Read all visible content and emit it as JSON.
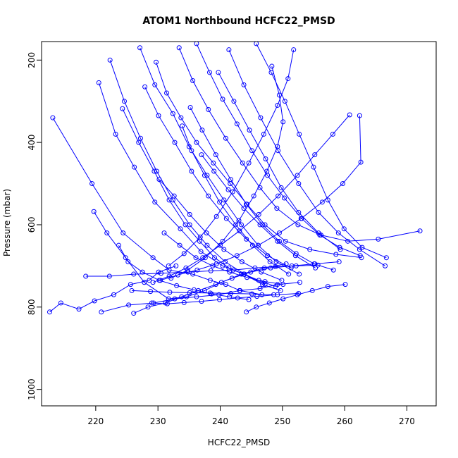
{
  "chart_data": {
    "type": "line",
    "title": "ATOM1 Northbound HCFC22_PMSD",
    "xlabel": "HCFC22_PMSD",
    "ylabel": "Pressure (mbar)",
    "xlim": [
      211.3,
      274.7
    ],
    "ylim": [
      1040,
      155
    ],
    "y_reversed": true,
    "grid": false,
    "legend": "none",
    "series_color": "#0000ff",
    "marker": "open-circle",
    "x_ticks": [
      220,
      230,
      240,
      250,
      260,
      270
    ],
    "x_tick_labels": [
      "220",
      "230",
      "240",
      "250",
      "260",
      "270"
    ],
    "y_ticks": [
      200,
      400,
      600,
      800,
      1000
    ],
    "y_tick_labels": [
      "200",
      "400",
      "600",
      "800",
      "1000"
    ],
    "profiles": [
      {
        "x": [
          212.6,
          214.4,
          217.3,
          219.8,
          222.9,
          225.6,
          228.6,
          230.1,
          232.9
        ],
        "y": [
          812,
          790,
          805,
          785,
          770,
          745,
          735,
          715,
          700
        ]
      },
      {
        "x": [
          213.1,
          219.4,
          224.4,
          229.2,
          231.8,
          235.6,
          238.4,
          240.9,
          243.2,
          246.7
        ],
        "y": [
          340,
          500,
          620,
          680,
          710,
          720,
          735,
          745,
          760,
          770
        ]
      },
      {
        "x": [
          219.7,
          221.8,
          224.8,
          227.8,
          231.7,
          234.6,
          237.5,
          240.2,
          243.4,
          247.1,
          250.6
        ],
        "y": [
          568,
          620,
          680,
          740,
          780,
          775,
          760,
          740,
          720,
          705,
          695
        ]
      },
      {
        "x": [
          220.5,
          223.2,
          226.2,
          229.5,
          233.6,
          236.9,
          240.4,
          243.8,
          246.8,
          249.7
        ],
        "y": [
          255,
          380,
          460,
          545,
          610,
          665,
          700,
          720,
          745,
          760
        ]
      },
      {
        "x": [
          218.4,
          222.2,
          226.1,
          230.5,
          234.8,
          238.5,
          242.1,
          245.6,
          248.9,
          252.2,
          255.7
        ],
        "y": [
          725,
          725,
          720,
          718,
          715,
          712,
          710,
          705,
          702,
          700,
          698
        ]
      },
      {
        "x": [
          220.9,
          225.3,
          229.3,
          232.7,
          236.2,
          239.8,
          243.1,
          246.4,
          249.2,
          252.8
        ],
        "y": [
          812,
          795,
          790,
          780,
          775,
          770,
          760,
          755,
          745,
          740
        ]
      },
      {
        "x": [
          224.3,
          226.9,
          229.4,
          231.8,
          234.4,
          236.7,
          239.1,
          241.4,
          243.8,
          246.2,
          248.9
        ],
        "y": [
          318,
          400,
          470,
          540,
          600,
          640,
          680,
          705,
          720,
          735,
          750
        ]
      },
      {
        "x": [
          227.1,
          229.5,
          232.4,
          235.0,
          237.9,
          240.6,
          243.4,
          246.1,
          249.0,
          252.7
        ],
        "y": [
          170,
          260,
          330,
          410,
          480,
          540,
          600,
          650,
          690,
          720
        ]
      },
      {
        "x": [
          226.1,
          228.4,
          231.2,
          233.8,
          236.5,
          239.3,
          241.9,
          244.9,
          248.1,
          251.5,
          255.2,
          259.1
        ],
        "y": [
          815,
          800,
          790,
          775,
          760,
          745,
          730,
          715,
          705,
          700,
          695,
          690
        ]
      },
      {
        "x": [
          229.7,
          231.4,
          233.7,
          236.2,
          238.9,
          241.6,
          244.3,
          247.2,
          250.5,
          254.4,
          258.6,
          262.7
        ],
        "y": [
          205,
          280,
          340,
          400,
          450,
          500,
          550,
          600,
          640,
          660,
          672,
          680
        ]
      },
      {
        "x": [
          233.4,
          235.6,
          238.1,
          240.9,
          243.6,
          246.4,
          249.1,
          252.5,
          256.2,
          260.5,
          265.4,
          272.1
        ],
        "y": [
          170,
          250,
          320,
          390,
          450,
          510,
          560,
          600,
          625,
          640,
          635,
          615
        ]
      },
      {
        "x": [
          236.2,
          238.3,
          240.4,
          242.7,
          245.1,
          247.6,
          250.3,
          253.1,
          256.0,
          259.2,
          262.5
        ],
        "y": [
          160,
          230,
          295,
          355,
          420,
          480,
          535,
          585,
          625,
          655,
          675
        ]
      },
      {
        "x": [
          260.8,
          258.1,
          255.2,
          252.4,
          249.3,
          246.2,
          243.1,
          240.0,
          237.2,
          234.5,
          231.8,
          229.2
        ],
        "y": [
          333,
          380,
          430,
          480,
          530,
          575,
          615,
          650,
          680,
          705,
          725,
          740
        ]
      },
      {
        "x": [
          262.4,
          262.6,
          259.7,
          256.4,
          253.0,
          249.5,
          246.1,
          242.7,
          239.4,
          236.3,
          233.2,
          230.4
        ],
        "y": [
          335,
          448,
          500,
          545,
          585,
          620,
          650,
          675,
          695,
          710,
          722,
          735
        ]
      },
      {
        "x": [
          245.8,
          248.2,
          250.4,
          252.7,
          255.0,
          257.3,
          259.9,
          262.8,
          266.7
        ],
        "y": [
          160,
          230,
          300,
          380,
          460,
          540,
          610,
          655,
          680
        ]
      },
      {
        "x": [
          241.4,
          243.8,
          246.5,
          249.3,
          252.6,
          255.8,
          259.0,
          262.4,
          266.5
        ],
        "y": [
          175,
          260,
          340,
          420,
          500,
          570,
          620,
          660,
          700
        ]
      },
      {
        "x": [
          222.3,
          224.6,
          227.2,
          229.8,
          232.4,
          235.1,
          237.9,
          240.8,
          243.9,
          247.2
        ],
        "y": [
          200,
          300,
          390,
          470,
          540,
          600,
          650,
          690,
          720,
          745
        ]
      },
      {
        "x": [
          227.9,
          230.1,
          232.7,
          235.4,
          238.1,
          241.0,
          244.2,
          247.6,
          251.4
        ],
        "y": [
          265,
          335,
          400,
          470,
          530,
          585,
          635,
          675,
          705
        ]
      },
      {
        "x": [
          239.7,
          242.2,
          244.7,
          247.3,
          249.8,
          252.6,
          255.8,
          259.3
        ],
        "y": [
          230,
          300,
          370,
          440,
          510,
          570,
          620,
          660
        ]
      },
      {
        "x": [
          231.0,
          233.5,
          236.1,
          238.8,
          241.5,
          244.3,
          247.2,
          250.1
        ],
        "y": [
          620,
          650,
          680,
          700,
          715,
          728,
          738,
          745
        ]
      },
      {
        "x": [
          229.0,
          231.5,
          234.2,
          237.0,
          239.9,
          242.8,
          245.9,
          249.2,
          252.6
        ],
        "y": [
          790,
          792,
          789,
          786,
          782,
          778,
          774,
          770,
          767
        ]
      },
      {
        "x": [
          225.8,
          228.8,
          231.9,
          235.1,
          238.4,
          241.7,
          245.1,
          248.6
        ],
        "y": [
          760,
          762,
          764,
          765,
          766,
          767,
          768,
          770
        ]
      },
      {
        "x": [
          223.7,
          225.2,
          227.5,
          230.2,
          233.0,
          235.8,
          238.6,
          241.5,
          244.6
        ],
        "y": [
          650,
          690,
          715,
          735,
          748,
          758,
          768,
          775,
          782
        ]
      },
      {
        "x": [
          244.2,
          245.8,
          247.9,
          250.1,
          252.4,
          254.8,
          257.3,
          260.1
        ],
        "y": [
          812,
          800,
          790,
          780,
          770,
          760,
          750,
          745
        ]
      },
      {
        "x": [
          235.2,
          237.1,
          239.3,
          241.7,
          244.2,
          246.8,
          249.5,
          252.2,
          255.1,
          258.2
        ],
        "y": [
          315,
          370,
          430,
          490,
          550,
          600,
          640,
          670,
          695,
          710
        ]
      },
      {
        "x": [
          248.3,
          249.5,
          250.1,
          249.2,
          247.5,
          245.4,
          243.0,
          240.4,
          237.6,
          234.8,
          232.1
        ],
        "y": [
          215,
          285,
          350,
          410,
          470,
          530,
          590,
          640,
          680,
          710,
          730
        ]
      },
      {
        "x": [
          251.8,
          250.9,
          249.2,
          247.0,
          244.6,
          242.0,
          239.4,
          236.8,
          234.2,
          231.7
        ],
        "y": [
          175,
          245,
          310,
          380,
          450,
          520,
          580,
          630,
          670,
          700
        ]
      },
      {
        "x": [
          233.9,
          235.4,
          237.5,
          239.9,
          242.5,
          245.2,
          248.0,
          251.0
        ],
        "y": [
          360,
          420,
          480,
          545,
          600,
          650,
          690,
          720
        ]
      },
      {
        "x": [
          237.0,
          239.0,
          241.3,
          243.8,
          246.4,
          249.2,
          252.1,
          255.3
        ],
        "y": [
          430,
          470,
          515,
          560,
          600,
          640,
          675,
          705
        ]
      },
      {
        "x": [
          230.2,
          232.6,
          235.1,
          237.8,
          240.6,
          243.5,
          246.6,
          249.9
        ],
        "y": [
          490,
          530,
          575,
          620,
          660,
          690,
          715,
          735
        ]
      }
    ]
  }
}
